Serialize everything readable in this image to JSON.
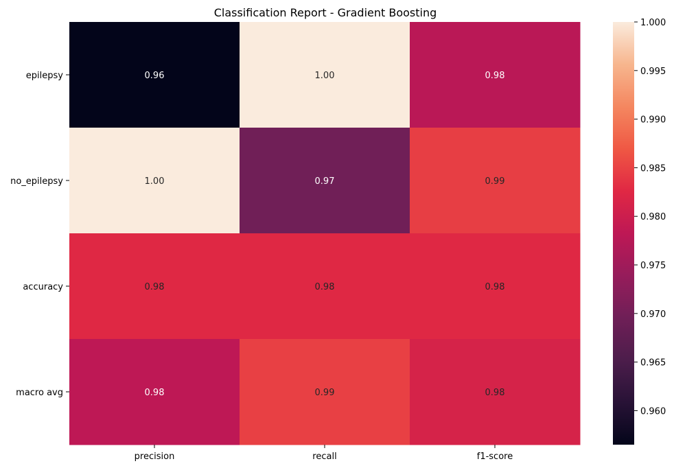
{
  "chart_data": {
    "type": "heatmap",
    "title": "Classification Report - Gradient Boosting",
    "columns": [
      "precision",
      "recall",
      "f1-score"
    ],
    "rows": [
      "epilepsy",
      "no_epilepsy",
      "accuracy",
      "macro avg"
    ],
    "values": [
      [
        0.9565,
        1.0,
        0.9778
      ],
      [
        1.0,
        0.9697,
        0.9846
      ],
      [
        0.9825,
        0.9825,
        0.9825
      ],
      [
        0.9783,
        0.9848,
        0.9812
      ]
    ],
    "value_labels": [
      [
        "0.96",
        "1.00",
        "0.98"
      ],
      [
        "1.00",
        "0.97",
        "0.99"
      ],
      [
        "0.98",
        "0.98",
        "0.98"
      ],
      [
        "0.98",
        "0.99",
        "0.98"
      ]
    ],
    "colorbar": {
      "min": 0.9565,
      "max": 1.0,
      "ticks": [
        0.96,
        0.965,
        0.97,
        0.975,
        0.98,
        0.985,
        0.99,
        0.995,
        1.0
      ],
      "tick_labels": [
        "0.960",
        "0.965",
        "0.970",
        "0.975",
        "0.980",
        "0.985",
        "0.990",
        "0.995",
        "1.000"
      ]
    },
    "colormap": "rocket"
  }
}
